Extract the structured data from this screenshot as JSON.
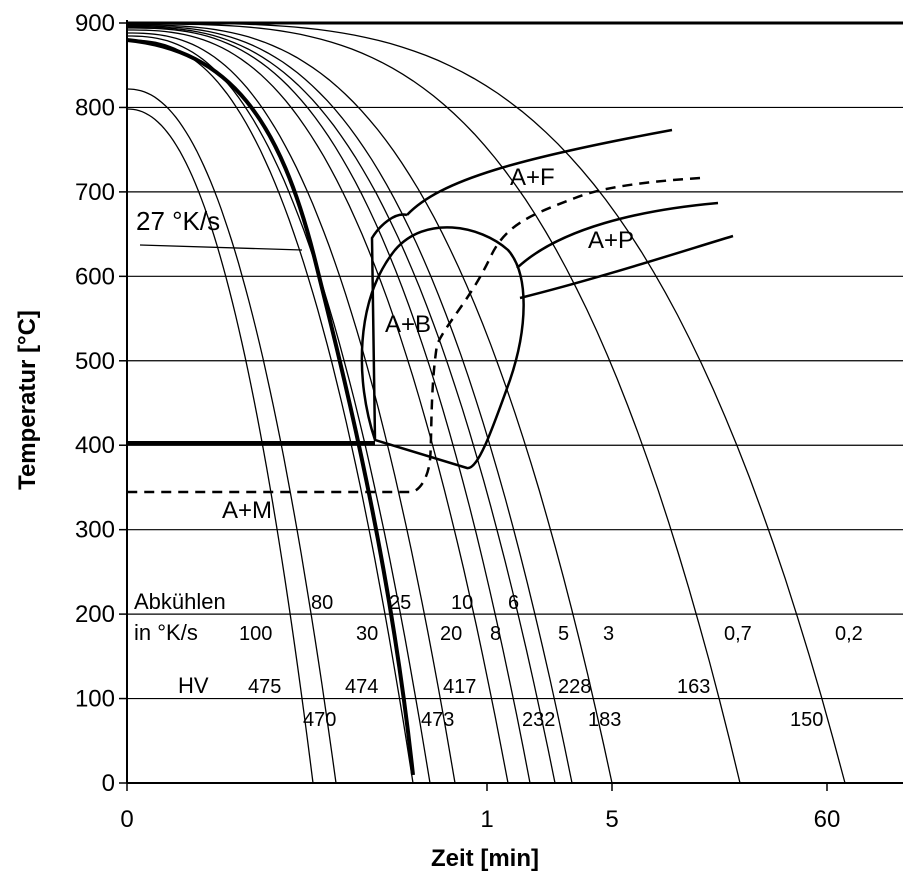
{
  "chart_data": {
    "type": "line",
    "title": "",
    "xlabel": "Zeit [min]",
    "ylabel": "Temperatur [°C]",
    "x_scale": "log",
    "x_ticks": [
      "0",
      "1",
      "5",
      "60"
    ],
    "ylim": [
      0,
      900
    ],
    "y_ticks": [
      "0",
      "100",
      "200",
      "300",
      "400",
      "500",
      "600",
      "700",
      "800",
      "900"
    ],
    "grid": "horizontal",
    "cooling_rate_heading": [
      "Abkühlen",
      "in °K/s"
    ],
    "cooling_rates": [
      "100",
      "80",
      "30",
      "25",
      "20",
      "10",
      "8",
      "6",
      "5",
      "3",
      "0,7",
      "0,2"
    ],
    "hardness_heading": "HV",
    "hardness_values": [
      "475",
      "470",
      "474",
      "473",
      "417",
      "232",
      "228",
      "183",
      "163",
      "150"
    ],
    "critical_curve_label": "27 °K/s",
    "phase_regions": [
      "A+F",
      "A+P",
      "A+B",
      "A+M"
    ]
  }
}
